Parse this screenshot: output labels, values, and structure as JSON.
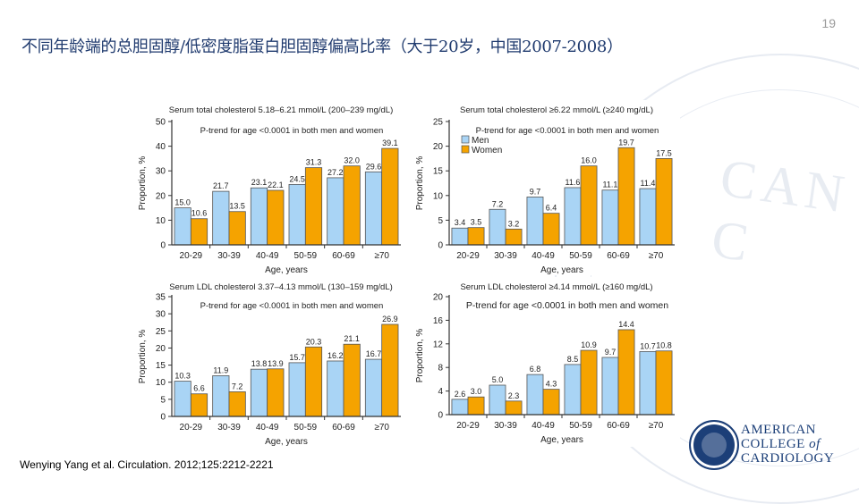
{
  "page_number": "19",
  "title": "不同年龄端的总胆固醇/低密度脂蛋白胆固醇偏高比率（大于20岁，中国2007-2008）",
  "citation": "Wenying Yang et al. Circulation. 2012;125:2212-2221",
  "logo": {
    "line1": "AMERICAN",
    "line2": "COLLEGE",
    "line2_suffix": "of",
    "line3": "CARDIOLOGY"
  },
  "colors": {
    "men": "#a9d4f5",
    "women": "#f5a300",
    "axis": "#333333"
  },
  "chart_data": [
    {
      "type": "bar",
      "title": "Serum total cholesterol 5.18–6.21 mmol/L (200–239 mg/dL)",
      "annotation": "P-trend for age <0.0001 in both men and women",
      "xlabel": "Age, years",
      "ylabel": "Proportion, %",
      "categories": [
        "20-29",
        "30-39",
        "40-49",
        "50-59",
        "60-69",
        "≥70"
      ],
      "ylim": [
        0,
        50
      ],
      "yticks": [
        0,
        10,
        20,
        30,
        40,
        50
      ],
      "legend": null,
      "series": [
        {
          "name": "Men",
          "values": [
            15.0,
            21.7,
            23.1,
            24.5,
            27.2,
            29.6
          ]
        },
        {
          "name": "Women",
          "values": [
            10.6,
            13.5,
            22.1,
            31.3,
            32.0,
            39.1
          ]
        }
      ]
    },
    {
      "type": "bar",
      "title": "Serum total cholesterol ≥6.22  mmol/L (≥240 mg/dL)",
      "annotation": "P-trend for age <0.0001 in both men and women",
      "xlabel": "Age, years",
      "ylabel": "Proportion, %",
      "categories": [
        "20-29",
        "30-39",
        "40-49",
        "50-59",
        "60-69",
        "≥70"
      ],
      "ylim": [
        0,
        25
      ],
      "yticks": [
        0,
        5,
        10,
        15,
        20,
        25
      ],
      "legend": "top-left",
      "series": [
        {
          "name": "Men",
          "values": [
            3.4,
            7.2,
            9.7,
            11.6,
            11.1,
            11.4
          ]
        },
        {
          "name": "Women",
          "values": [
            3.5,
            3.2,
            6.4,
            16.0,
            19.7,
            17.5
          ]
        }
      ]
    },
    {
      "type": "bar",
      "title": "Serum LDL cholesterol 3.37–4.13 mmol/L (130–159 mg/dL)",
      "annotation": "P-trend for age <0.0001 in both men and women",
      "xlabel": "Age, years",
      "ylabel": "Proportion, %",
      "categories": [
        "20-29",
        "30-39",
        "40-49",
        "50-59",
        "60-69",
        "≥70"
      ],
      "ylim": [
        0,
        35
      ],
      "yticks": [
        0,
        5,
        10,
        15,
        20,
        25,
        30,
        35
      ],
      "legend": null,
      "series": [
        {
          "name": "Men",
          "values": [
            10.3,
            11.9,
            13.8,
            15.7,
            16.2,
            16.7
          ]
        },
        {
          "name": "Women",
          "values": [
            6.6,
            7.2,
            13.9,
            20.3,
            21.1,
            26.9
          ]
        }
      ]
    },
    {
      "type": "bar",
      "title": "Serum LDL cholesterol ≥4.14 mmol/L (≥160 mg/dL)",
      "annotation": "P-trend for age <0.0001 in both men and women",
      "xlabel": "Age, years",
      "ylabel": "Proportion, %",
      "categories": [
        "20-29",
        "30-39",
        "40-49",
        "50-59",
        "60-69",
        "≥70"
      ],
      "ylim": [
        0,
        20
      ],
      "yticks": [
        0,
        4,
        8,
        12,
        16,
        20
      ],
      "legend": null,
      "series": [
        {
          "name": "Men",
          "values": [
            2.6,
            5.0,
            6.8,
            8.5,
            9.7,
            10.7
          ]
        },
        {
          "name": "Women",
          "values": [
            3.0,
            2.3,
            4.3,
            10.9,
            14.4,
            10.8
          ]
        }
      ]
    }
  ]
}
